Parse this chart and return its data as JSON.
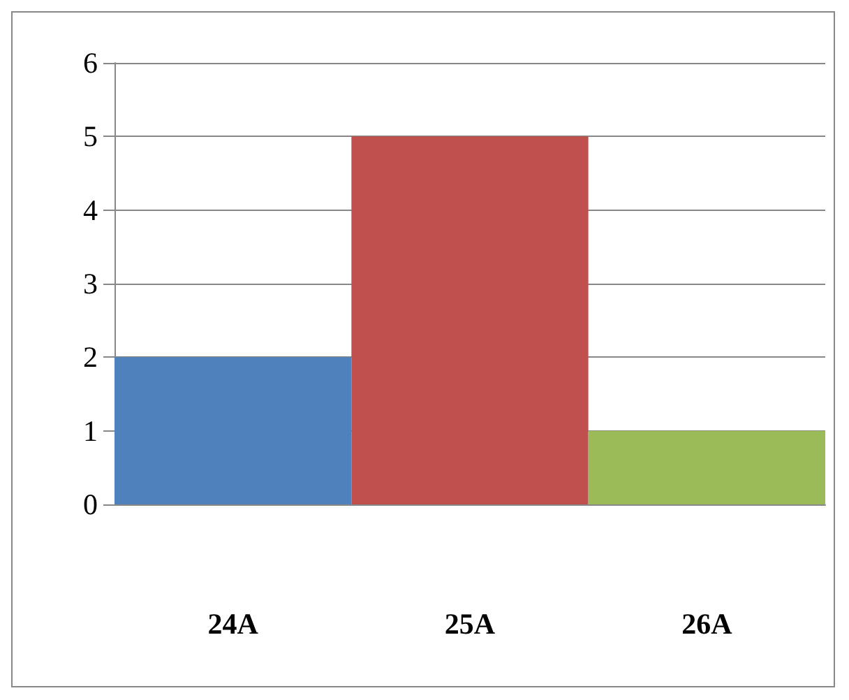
{
  "chart_data": {
    "type": "bar",
    "categories": [
      "24A",
      "25A",
      "26A"
    ],
    "values": [
      2,
      5,
      1
    ],
    "colors": [
      "#4f81bd",
      "#c0504d",
      "#9bbb59"
    ],
    "ylim": [
      0,
      6
    ],
    "yticks": [
      0,
      1,
      2,
      3,
      4,
      5,
      6
    ],
    "grid": "y"
  }
}
